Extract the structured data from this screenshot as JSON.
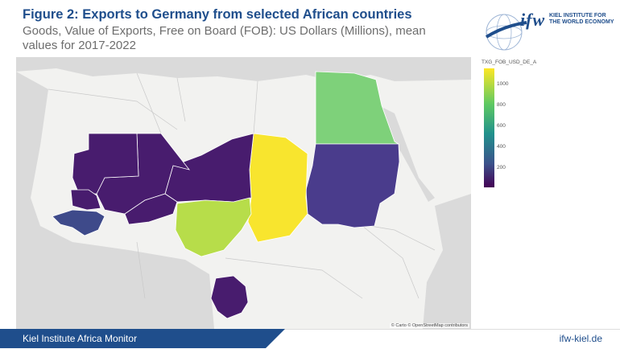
{
  "header": {
    "title": "Figure 2: Exports to Germany from selected African countries",
    "subtitle": "Goods, Value of Exports, Free on Board (FOB): US Dollars (Millions), mean values for 2017-2022"
  },
  "logo": {
    "mark": "ifw",
    "text": "KIEL INSTITUTE FOR THE WORLD ECONOMY"
  },
  "colorbar": {
    "title": "TXG_FOB_USD_DE_A",
    "ticks": [
      "1000",
      "800",
      "600",
      "400",
      "200"
    ],
    "scale": "viridis",
    "colors": [
      "#440154",
      "#3b528b",
      "#21918c",
      "#5ec962",
      "#fde725"
    ]
  },
  "map": {
    "attribution": "© Carto © OpenStreetMap contributors",
    "countries": [
      {
        "name": "Egypt",
        "color": "#7ed17a"
      },
      {
        "name": "Chad",
        "color": "#f8e52e"
      },
      {
        "name": "Nigeria",
        "color": "#b7dd4a"
      },
      {
        "name": "Sudan",
        "color": "#4a3c8c"
      },
      {
        "name": "Mali",
        "color": "#481c6e"
      },
      {
        "name": "Niger",
        "color": "#481c6e"
      },
      {
        "name": "Mauritania",
        "color": "#481c6e"
      },
      {
        "name": "Burkina Faso",
        "color": "#481c6e"
      },
      {
        "name": "Senegal",
        "color": "#481c6e"
      },
      {
        "name": "Guinea",
        "color": "#3e4a8a"
      },
      {
        "name": "Gabon",
        "color": "#481c6e"
      }
    ]
  },
  "footer": {
    "left": "Kiel Institute Africa Monitor",
    "right": "ifw-kiel.de"
  }
}
